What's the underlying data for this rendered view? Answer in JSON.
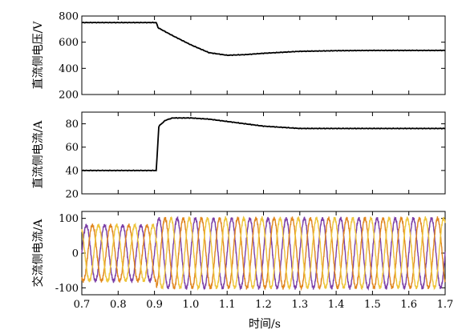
{
  "chart_data": [
    {
      "type": "line",
      "ylabel": "直流侧电压/V",
      "xlim": [
        0.7,
        1.7
      ],
      "ylim": [
        200,
        800
      ],
      "yticks": [
        "200",
        "400",
        "600",
        "800"
      ],
      "series": [
        {
          "color": "#000000",
          "x": [
            0.7,
            0.905,
            0.91,
            0.95,
            1.0,
            1.05,
            1.1,
            1.15,
            1.2,
            1.3,
            1.4,
            1.5,
            1.6,
            1.7
          ],
          "y": [
            750,
            750,
            710,
            650,
            580,
            520,
            500,
            505,
            515,
            530,
            535,
            537,
            537,
            537
          ]
        }
      ]
    },
    {
      "type": "line",
      "ylabel": "直流侧电流/A",
      "xlim": [
        0.7,
        1.7
      ],
      "ylim": [
        20,
        90
      ],
      "yticks": [
        "20",
        "40",
        "60",
        "80"
      ],
      "series": [
        {
          "color": "#000000",
          "x": [
            0.7,
            0.905,
            0.912,
            0.93,
            0.95,
            1.0,
            1.05,
            1.1,
            1.15,
            1.2,
            1.3,
            1.4,
            1.5,
            1.6,
            1.7
          ],
          "y": [
            40,
            40,
            78,
            83,
            85,
            85,
            84,
            82,
            80,
            78,
            76,
            76,
            76,
            76,
            76
          ]
        }
      ]
    },
    {
      "type": "line",
      "ylabel": "交流侧电流/A",
      "xlabel": "时间/s",
      "xlim": [
        0.7,
        1.7
      ],
      "ylim": [
        -120,
        120
      ],
      "yticks": [
        "-100",
        "0",
        "100"
      ],
      "xticks": [
        "0.7",
        "0.8",
        "0.9",
        "1.0",
        "1.1",
        "1.2",
        "1.3",
        "1.4",
        "1.5",
        "1.6",
        "1.7"
      ],
      "frequency_hz": 20,
      "step_time": 0.905,
      "amplitude_before": 80,
      "amplitude_after": 100,
      "series": [
        {
          "color": "#7b3fa6",
          "phase_deg": 0
        },
        {
          "color": "#e0861e",
          "phase_deg": -120
        },
        {
          "color": "#eec43a",
          "phase_deg": 120
        }
      ]
    }
  ]
}
